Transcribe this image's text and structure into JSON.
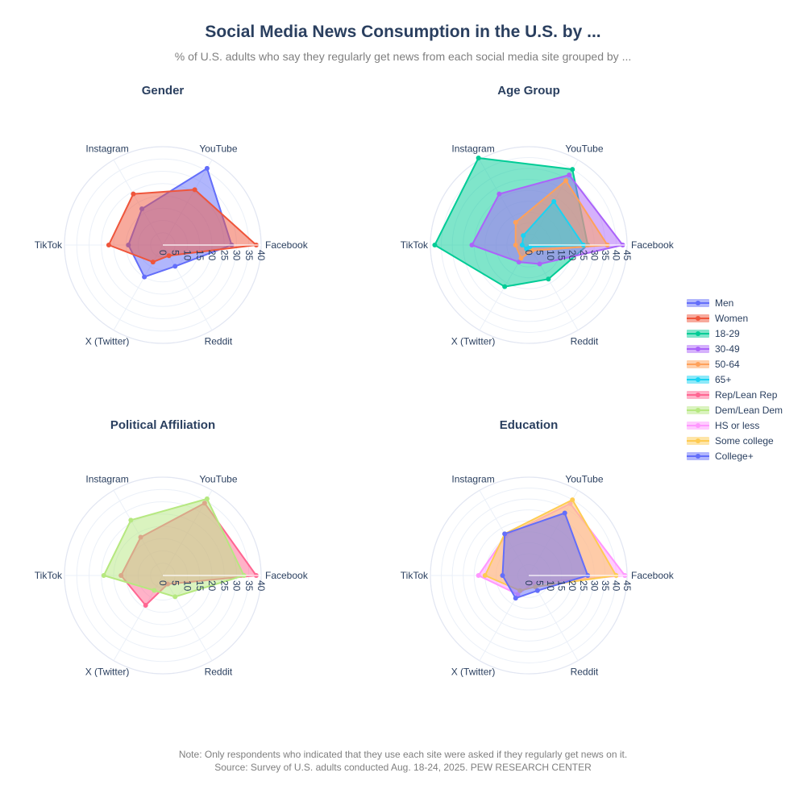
{
  "title": "Social Media News Consumption in the U.S. by ...",
  "subtitle": "% of U.S. adults who say they regularly get news from each social media site grouped by ...",
  "footer_line1": "Note: Only respondents who indicated that they use each site were asked if they regularly get news on it.",
  "footer_line2": "Source: Survey of U.S. adults conducted Aug. 18-24, 2025. PEW RESEARCH CENTER",
  "colors": {
    "Men": "#636efa",
    "Women": "#EF553B",
    "18-29": "#00cc96",
    "30-49": "#ab63fa",
    "50-64": "#FFA15A",
    "65+": "#19d3f3",
    "Rep/Lean Rep": "#FF6692",
    "Dem/Lean Dem": "#B6E880",
    "HS or less": "#FF97FF",
    "Some college": "#FECB52",
    "College+": "#636efa"
  },
  "legend": [
    "Men",
    "Women",
    "18-29",
    "30-49",
    "50-64",
    "65+",
    "Rep/Lean Rep",
    "Dem/Lean Dem",
    "HS or less",
    "Some college",
    "College+"
  ],
  "chart_data": [
    {
      "type": "radar",
      "title": "Gender",
      "axes": [
        "Facebook",
        "YouTube",
        "Instagram",
        "TikTok",
        "X (Twitter)",
        "Reddit"
      ],
      "radial_range": [
        0,
        40
      ],
      "radial_ticks": [
        "0",
        "5",
        "10",
        "15",
        "20",
        "25",
        "30",
        "35",
        "40"
      ],
      "series": [
        {
          "name": "Men",
          "values": [
            28,
            36,
            17,
            14,
            15,
            10
          ]
        },
        {
          "name": "Women",
          "values": [
            38,
            26,
            24,
            22,
            8,
            5
          ]
        }
      ]
    },
    {
      "type": "radar",
      "title": "Age Group",
      "axes": [
        "Facebook",
        "YouTube",
        "Instagram",
        "TikTok",
        "X (Twitter)",
        "Reddit"
      ],
      "radial_range": [
        0,
        45
      ],
      "radial_ticks": [
        "0",
        "5",
        "10",
        "15",
        "20",
        "25",
        "30",
        "35",
        "40",
        "45"
      ],
      "series": [
        {
          "name": "18-29",
          "values": [
            27,
            40,
            46,
            43,
            22,
            18
          ]
        },
        {
          "name": "30-49",
          "values": [
            43,
            37,
            27,
            26,
            9,
            10
          ]
        },
        {
          "name": "50-64",
          "values": [
            36,
            34,
            12,
            6,
            7,
            3
          ]
        },
        {
          "name": "65+",
          "values": [
            25,
            23,
            5,
            3,
            2,
            1
          ]
        }
      ]
    },
    {
      "type": "radar",
      "title": "Political Affiliation",
      "axes": [
        "Facebook",
        "YouTube",
        "Instagram",
        "TikTok",
        "X (Twitter)",
        "Reddit"
      ],
      "radial_range": [
        0,
        40
      ],
      "radial_ticks": [
        "0",
        "5",
        "10",
        "15",
        "20",
        "25",
        "30",
        "35",
        "40"
      ],
      "series": [
        {
          "name": "Rep/Lean Rep",
          "values": [
            38,
            34,
            18,
            17,
            14,
            4
          ]
        },
        {
          "name": "Dem/Lean Dem",
          "values": [
            33,
            36,
            26,
            24,
            7,
            10
          ]
        }
      ]
    },
    {
      "type": "radar",
      "title": "Education",
      "axes": [
        "Facebook",
        "YouTube",
        "Instagram",
        "TikTok",
        "X (Twitter)",
        "Reddit"
      ],
      "radial_range": [
        0,
        45
      ],
      "radial_ticks": [
        "0",
        "5",
        "10",
        "15",
        "20",
        "25",
        "30",
        "35",
        "40",
        "45"
      ],
      "series": [
        {
          "name": "HS or less",
          "values": [
            44,
            38,
            21,
            23,
            10,
            4
          ]
        },
        {
          "name": "Some college",
          "values": [
            40,
            40,
            22,
            20,
            8,
            6
          ]
        },
        {
          "name": "College+",
          "values": [
            27,
            33,
            22,
            12,
            12,
            8
          ]
        }
      ]
    }
  ]
}
